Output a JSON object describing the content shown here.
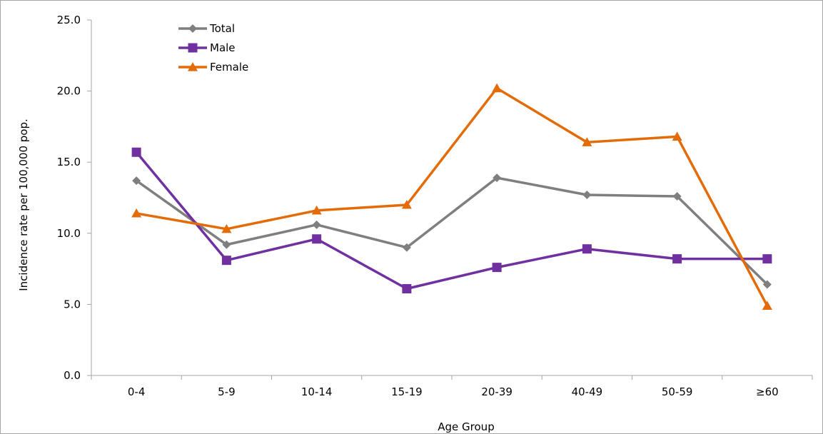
{
  "chart_data": {
    "type": "line",
    "xlabel": "Age Group",
    "ylabel": "Incidence rate per 100,000 pop.",
    "ylim": [
      0,
      25
    ],
    "yticks": [
      "0.0",
      "5.0",
      "10.0",
      "15.0",
      "20.0",
      "25.0"
    ],
    "grid": false,
    "legend_position": "top-left",
    "categories": [
      "0-4",
      "5-9",
      "10-14",
      "15-19",
      "20-39",
      "40-49",
      "50-59",
      "≥60"
    ],
    "series": [
      {
        "name": "Total",
        "color": "#7f7f7f",
        "marker": "diamond",
        "values": [
          13.7,
          9.2,
          10.6,
          9.0,
          13.9,
          12.7,
          12.6,
          6.4
        ]
      },
      {
        "name": "Male",
        "color": "#7030a0",
        "marker": "square",
        "values": [
          15.7,
          8.1,
          9.6,
          6.1,
          7.6,
          8.9,
          8.2,
          8.2
        ]
      },
      {
        "name": "Female",
        "color": "#e36c09",
        "marker": "triangle",
        "values": [
          11.4,
          10.3,
          11.6,
          12.0,
          20.2,
          16.4,
          16.8,
          4.9
        ]
      }
    ]
  }
}
